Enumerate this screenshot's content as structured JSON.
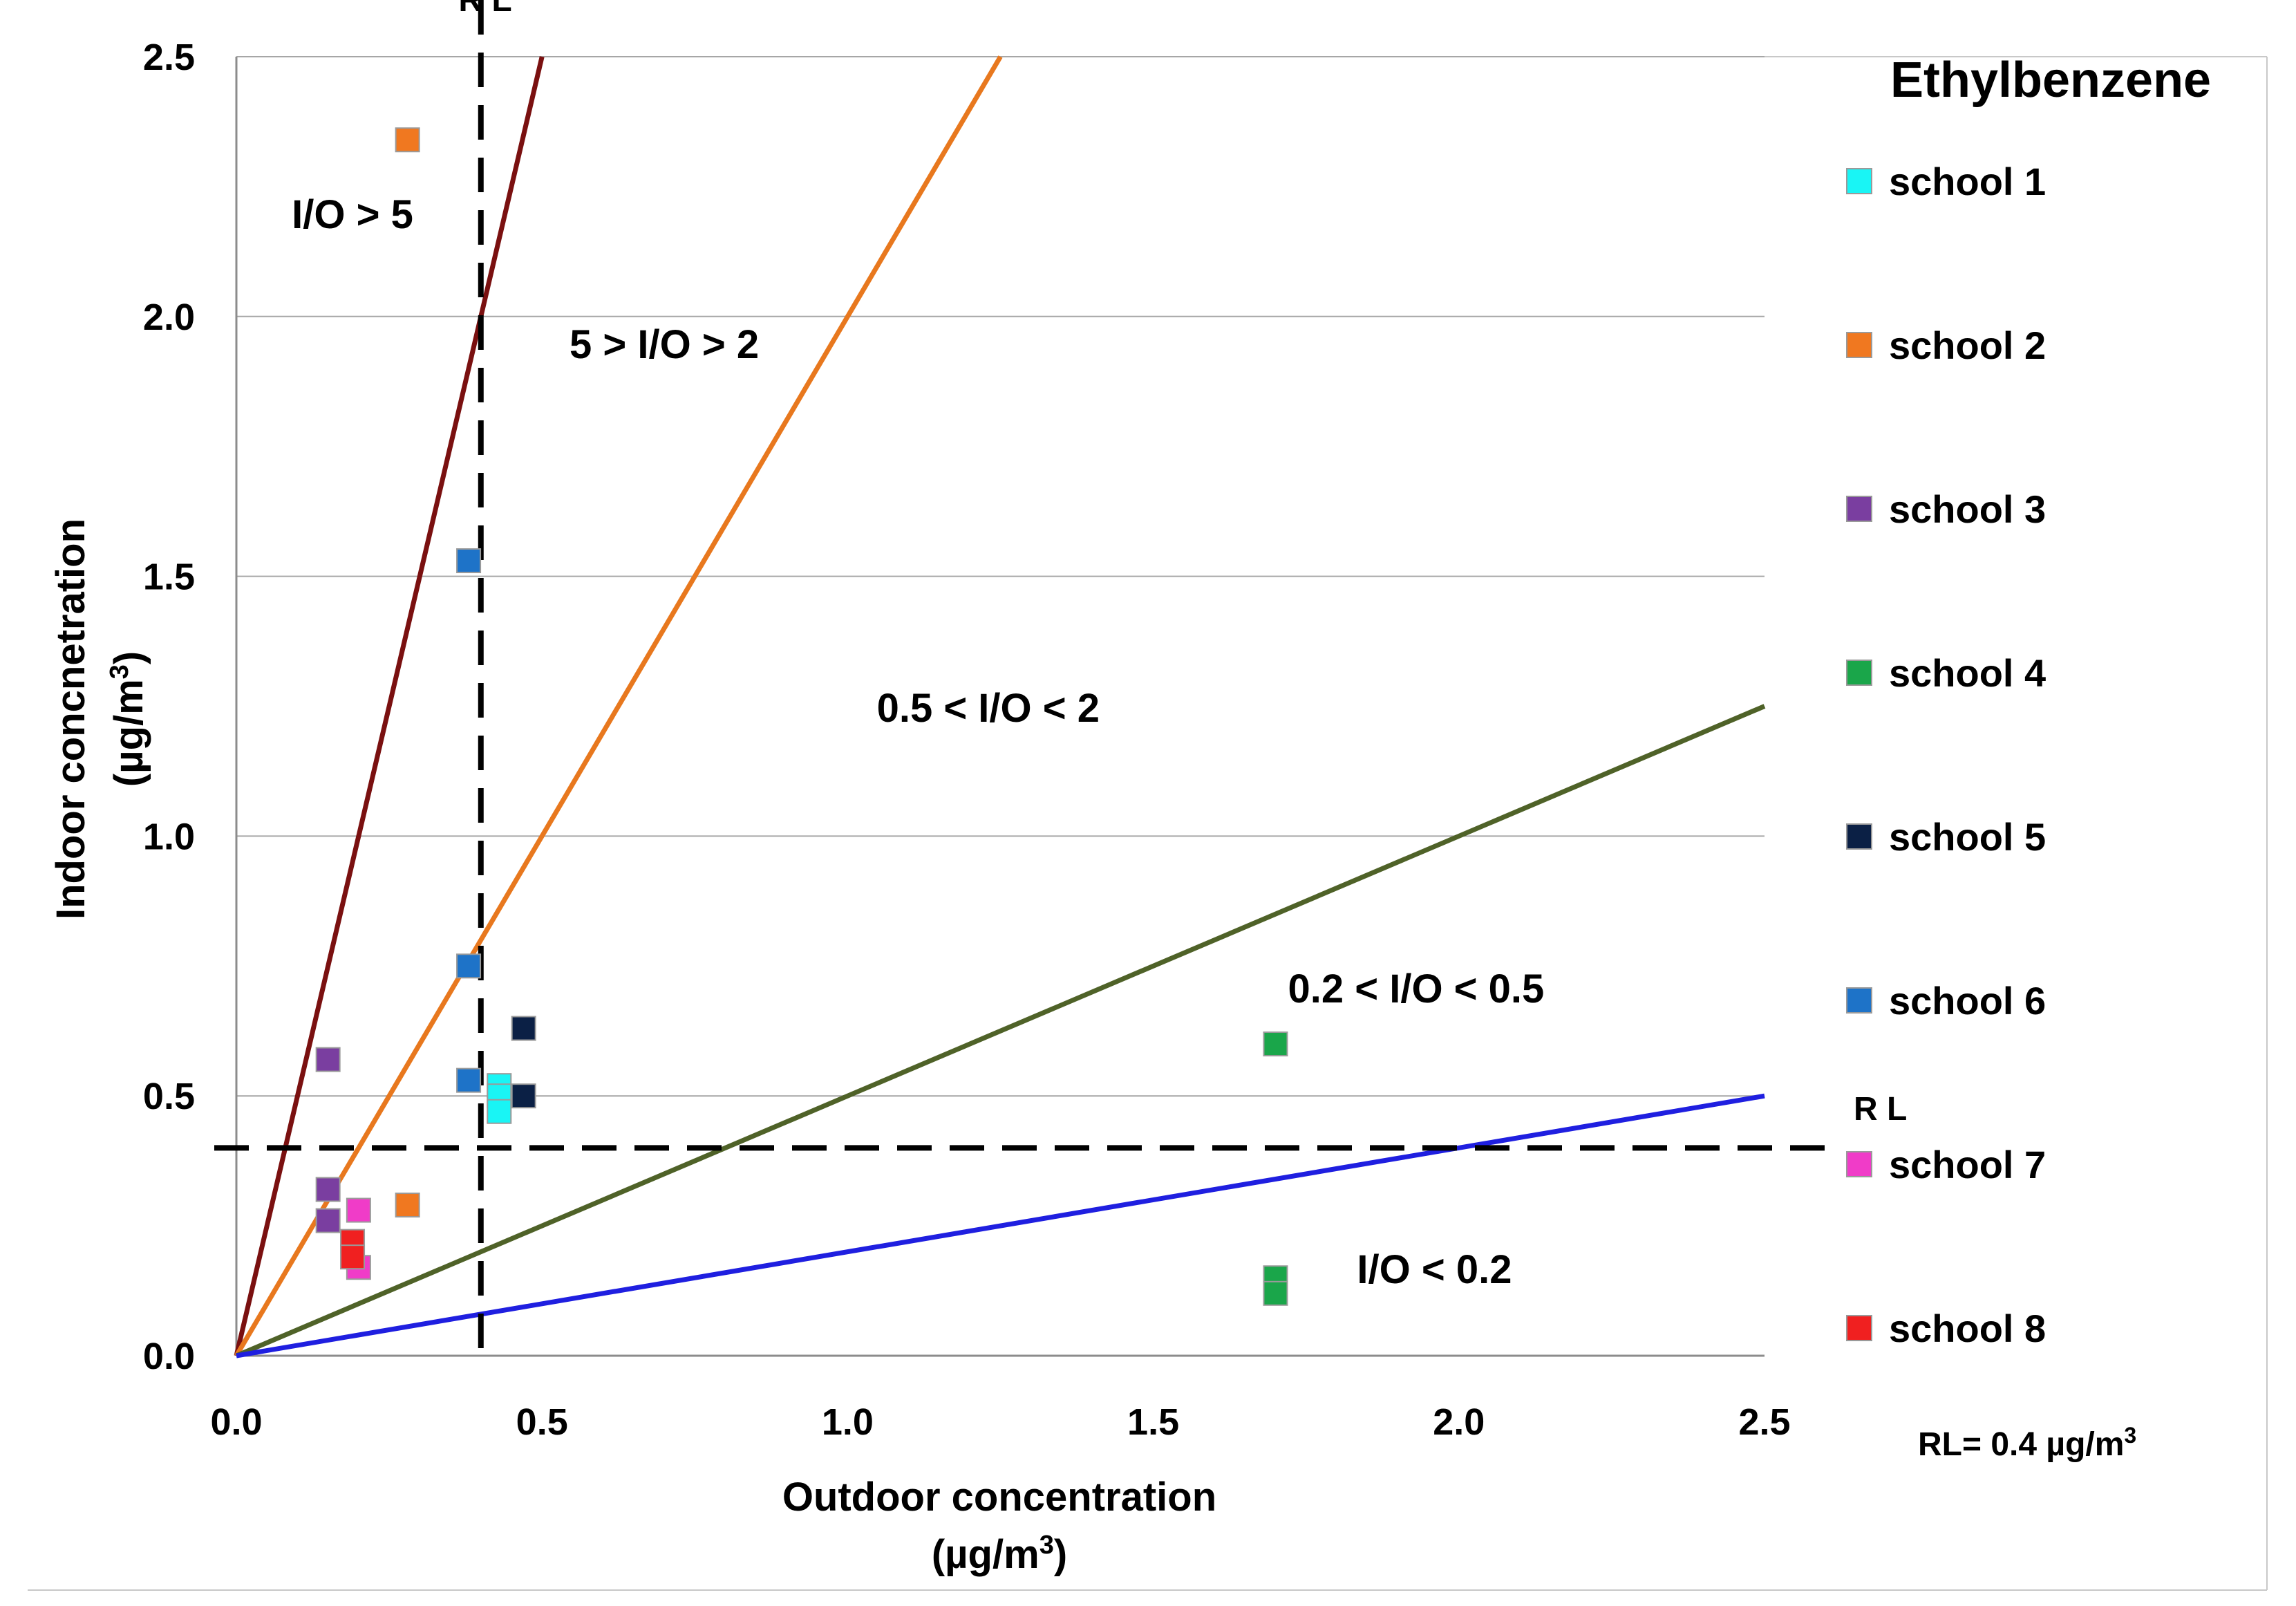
{
  "chart_data": {
    "type": "scatter",
    "title": "Ethylbenzene",
    "xlabel_line1": "Outdoor concentration",
    "xlabel_line2_prefix": "(µg/m",
    "xlabel_line2_sup": "3",
    "xlabel_line2_suffix": ")",
    "ylabel_line1": "Indoor concnetration",
    "ylabel_line2_prefix": "(µg/m",
    "ylabel_line2_sup": "3",
    "ylabel_line2_suffix": ")",
    "xlim": [
      0,
      2.5
    ],
    "ylim": [
      0,
      2.5
    ],
    "x_ticks": [
      "0.0",
      "0.5",
      "1.0",
      "1.5",
      "2.0",
      "2.5"
    ],
    "y_ticks": [
      "0.0",
      "0.5",
      "1.0",
      "1.5",
      "2.0",
      "2.5"
    ],
    "grid": "horizontal",
    "legend_position": "right",
    "ratio_lines": [
      {
        "slope": 5,
        "color": "#7a1010"
      },
      {
        "slope": 2,
        "color": "#e8781e"
      },
      {
        "slope": 0.5,
        "color": "#4f6228"
      },
      {
        "slope": 0.2,
        "color": "#1f1fe0"
      }
    ],
    "reference_level": {
      "value": 0.4,
      "label_x": "R L",
      "label_y": "R L",
      "note_prefix": "RL= 0.4 µg/m",
      "note_sup": "3"
    },
    "regions": [
      {
        "label": "I/O > 5",
        "x": 0.19,
        "y": 2.17
      },
      {
        "label": "5 > I/O > 2",
        "x": 0.7,
        "y": 1.92
      },
      {
        "label": "0.5 < I/O < 2",
        "x": 1.23,
        "y": 1.22
      },
      {
        "label": "0.2 < I/O < 0.5",
        "x": 1.93,
        "y": 0.68
      },
      {
        "label": "I/O < 0.2",
        "x": 1.96,
        "y": 0.14
      }
    ],
    "series": [
      {
        "name": "school 1",
        "color": "#19f5f5",
        "points": [
          [
            0.43,
            0.52
          ],
          [
            0.43,
            0.5
          ],
          [
            0.43,
            0.47
          ]
        ]
      },
      {
        "name": "school 2",
        "color": "#f07820",
        "points": [
          [
            0.28,
            2.34
          ],
          [
            0.28,
            0.29
          ]
        ]
      },
      {
        "name": "school 3",
        "color": "#7a3ea0",
        "points": [
          [
            0.15,
            0.57
          ],
          [
            0.15,
            0.32
          ],
          [
            0.15,
            0.26
          ]
        ]
      },
      {
        "name": "school 4",
        "color": "#1aa64a",
        "points": [
          [
            1.7,
            0.6
          ],
          [
            1.7,
            0.15
          ],
          [
            1.7,
            0.12
          ]
        ]
      },
      {
        "name": "school 5",
        "color": "#0b2045",
        "points": [
          [
            0.47,
            0.63
          ],
          [
            0.47,
            0.5
          ]
        ]
      },
      {
        "name": "school 6",
        "color": "#1e73c8",
        "points": [
          [
            0.38,
            1.53
          ],
          [
            0.38,
            0.75
          ],
          [
            0.38,
            0.53
          ]
        ]
      },
      {
        "name": "school 7",
        "color": "#f03cc8",
        "points": [
          [
            0.2,
            0.28
          ],
          [
            0.2,
            0.17
          ]
        ]
      },
      {
        "name": "school 8",
        "color": "#f02020",
        "points": [
          [
            0.19,
            0.22
          ],
          [
            0.19,
            0.19
          ]
        ]
      }
    ]
  }
}
